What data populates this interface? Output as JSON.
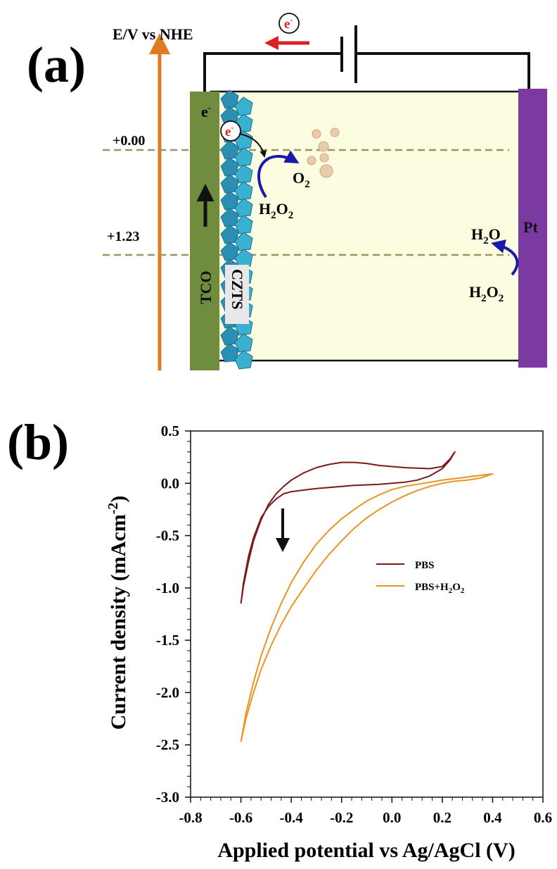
{
  "panel_a": {
    "label": "(a)",
    "axis_label": "E/V vs NHE",
    "level_0": "+0.00",
    "level_1": "+1.23",
    "electron": "e",
    "electron_sup": "-",
    "tco_label": "TCO",
    "czts_label": "CZTS",
    "pt_label": "Pt",
    "o2_main": "O",
    "o2_sub": "2",
    "h2o2_h": "H",
    "h2o2_sub1": "2",
    "h2o2_o": "O",
    "h2o2_sub2": "2",
    "h2o_h": "H",
    "h2o_sub": "2",
    "h2o_o": "O",
    "colors": {
      "tco": "#6f8c3f",
      "pt": "#7b3aa0",
      "electrolyte": "#fcfce0",
      "axis_arrow": "#e07b22",
      "czts": "#3ab0d0"
    }
  },
  "panel_b": {
    "label": "(b)"
  },
  "chart_data": {
    "type": "line",
    "xlabel": "Applied potential vs Ag/AgCl (V)",
    "ylabel_main": "Current density (mAcm",
    "ylabel_sup": "-2",
    "ylabel_close": ")",
    "xlim": [
      -0.8,
      0.6
    ],
    "ylim": [
      -3.0,
      0.5
    ],
    "xticks": [
      -0.8,
      -0.6,
      -0.4,
      -0.2,
      0.0,
      0.2,
      0.4,
      0.6
    ],
    "xtick_labels": [
      "-0.8",
      "-0.6",
      "-0.4",
      "-0.2",
      "0.0",
      "0.2",
      "0.4",
      "0.6"
    ],
    "yticks": [
      0.5,
      0.0,
      -0.5,
      -1.0,
      -1.5,
      -2.0,
      -2.5,
      -3.0
    ],
    "ytick_labels": [
      "0.5",
      "0.0",
      "-0.5",
      "-1.0",
      "-1.5",
      "-2.0",
      "-2.5",
      "-3.0"
    ],
    "legend": [
      {
        "text": "PBS",
        "color": "#7a1a1a"
      },
      {
        "text_main": "PBS+H",
        "sub1": "2",
        "mid": "O",
        "sub2": "2",
        "color": "#e8941f"
      }
    ],
    "series": [
      {
        "color": "#7a1a1a",
        "x": [
          -0.6,
          -0.59,
          -0.57,
          -0.55,
          -0.52,
          -0.49,
          -0.46,
          -0.43,
          -0.4,
          -0.35,
          -0.3,
          -0.25,
          -0.2,
          -0.15,
          -0.1,
          -0.05,
          0.0,
          0.05,
          0.1,
          0.15,
          0.2,
          0.23,
          0.25,
          0.25,
          0.23,
          0.2,
          0.15,
          0.1,
          0.05,
          0.0,
          -0.05,
          -0.1,
          -0.15,
          -0.2,
          -0.25,
          -0.3,
          -0.35,
          -0.4,
          -0.43,
          -0.46,
          -0.49,
          -0.52,
          -0.55,
          -0.57,
          -0.59,
          -0.6
        ],
        "y": [
          -1.15,
          -0.95,
          -0.7,
          -0.52,
          -0.33,
          -0.22,
          -0.15,
          -0.1,
          -0.08,
          -0.065,
          -0.05,
          -0.04,
          -0.03,
          -0.02,
          -0.015,
          -0.01,
          0.0,
          0.01,
          0.03,
          0.07,
          0.14,
          0.22,
          0.3,
          0.3,
          0.23,
          0.16,
          0.14,
          0.145,
          0.15,
          0.16,
          0.17,
          0.19,
          0.2,
          0.2,
          0.18,
          0.15,
          0.1,
          0.03,
          -0.03,
          -0.1,
          -0.2,
          -0.35,
          -0.55,
          -0.75,
          -0.98,
          -1.15
        ]
      },
      {
        "color": "#e8941f",
        "x": [
          -0.6,
          -0.58,
          -0.55,
          -0.52,
          -0.48,
          -0.44,
          -0.4,
          -0.35,
          -0.3,
          -0.25,
          -0.2,
          -0.15,
          -0.1,
          -0.05,
          0.0,
          0.05,
          0.1,
          0.15,
          0.2,
          0.25,
          0.3,
          0.35,
          0.4,
          0.4,
          0.35,
          0.3,
          0.25,
          0.2,
          0.15,
          0.1,
          0.05,
          0.0,
          -0.05,
          -0.1,
          -0.15,
          -0.2,
          -0.25,
          -0.3,
          -0.35,
          -0.4,
          -0.44,
          -0.48,
          -0.52,
          -0.55,
          -0.58,
          -0.6
        ],
        "y": [
          -2.47,
          -2.2,
          -1.9,
          -1.65,
          -1.38,
          -1.15,
          -0.95,
          -0.75,
          -0.58,
          -0.45,
          -0.34,
          -0.25,
          -0.17,
          -0.11,
          -0.06,
          -0.03,
          -0.01,
          0.01,
          0.03,
          0.045,
          0.06,
          0.075,
          0.09,
          0.09,
          0.05,
          0.03,
          0.02,
          0.0,
          -0.03,
          -0.07,
          -0.12,
          -0.18,
          -0.25,
          -0.33,
          -0.43,
          -0.55,
          -0.68,
          -0.83,
          -1.0,
          -1.18,
          -1.35,
          -1.55,
          -1.78,
          -2.0,
          -2.25,
          -2.47
        ]
      }
    ]
  }
}
